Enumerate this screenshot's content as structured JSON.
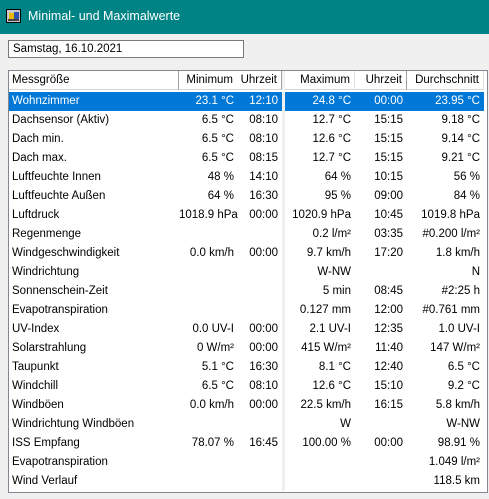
{
  "window": {
    "title": "Minimal- und Maximalwerte"
  },
  "date_field": {
    "value": "Samstag, 16.10.2021"
  },
  "table": {
    "columns": [
      "Messgröße",
      "Minimum",
      "Uhrzeit",
      "Maximum",
      "Uhrzeit",
      "Durchschnitt"
    ],
    "selected_row": 0,
    "rows": [
      [
        "Wohnzimmer",
        "23.1 °C",
        "12:10",
        "24.8 °C",
        "00:00",
        "23.95 °C"
      ],
      [
        "Dachsensor (Aktiv)",
        "6.5 °C",
        "08:10",
        "12.7 °C",
        "15:15",
        "9.18 °C"
      ],
      [
        "Dach min.",
        "6.5 °C",
        "08:10",
        "12.6 °C",
        "15:15",
        "9.14 °C"
      ],
      [
        "Dach max.",
        "6.5 °C",
        "08:15",
        "12.7 °C",
        "15:15",
        "9.21 °C"
      ],
      [
        "Luftfeuchte Innen",
        "48 %",
        "14:10",
        "64 %",
        "10:15",
        "56 %"
      ],
      [
        "Luftfeuchte Außen",
        "64 %",
        "16:30",
        "95 %",
        "09:00",
        "84 %"
      ],
      [
        "Luftdruck",
        "1018.9 hPa",
        "00:00",
        "1020.9 hPa",
        "10:45",
        "1019.8 hPa"
      ],
      [
        "Regenmenge",
        "",
        "",
        "0.2 l/m²",
        "03:35",
        "#0.200 l/m²"
      ],
      [
        "Windgeschwindigkeit",
        "0.0 km/h",
        "00:00",
        "9.7 km/h",
        "17:20",
        "1.8 km/h"
      ],
      [
        "Windrichtung",
        "",
        "",
        "W-NW",
        "",
        "N"
      ],
      [
        "Sonnenschein-Zeit",
        "",
        "",
        "5 min",
        "08:45",
        "#2:25 h"
      ],
      [
        "Evapotranspiration",
        "",
        "",
        "0.127 mm",
        "12:00",
        "#0.761 mm"
      ],
      [
        "UV-Index",
        "0.0 UV-I",
        "00:00",
        "2.1 UV-I",
        "12:35",
        "1.0 UV-I"
      ],
      [
        "Solarstrahlung",
        "0 W/m²",
        "00:00",
        "415 W/m²",
        "11:40",
        "147 W/m²"
      ],
      [
        "Taupunkt",
        "5.1 °C",
        "16:30",
        "8.1 °C",
        "12:40",
        "6.5 °C"
      ],
      [
        "Windchill",
        "6.5 °C",
        "08:10",
        "12.6 °C",
        "15:10",
        "9.2 °C"
      ],
      [
        "Windböen",
        "0.0 km/h",
        "00:00",
        "22.5 km/h",
        "16:15",
        "5.8 km/h"
      ],
      [
        "Windrichtung Windböen",
        "",
        "",
        "W",
        "",
        "W-NW"
      ],
      [
        "ISS Empfang",
        "78.07 %",
        "16:45",
        "100.00 %",
        "00:00",
        "98.91 %"
      ],
      [
        "Evapotranspiration",
        "",
        "",
        "",
        "",
        "1.049 l/m²"
      ],
      [
        "Wind Verlauf",
        "",
        "",
        "",
        "",
        "118.5 km"
      ]
    ]
  },
  "colors": {
    "titlebar": "#008384",
    "selection": "#0078d7",
    "window_background": "#f0f0f0"
  }
}
